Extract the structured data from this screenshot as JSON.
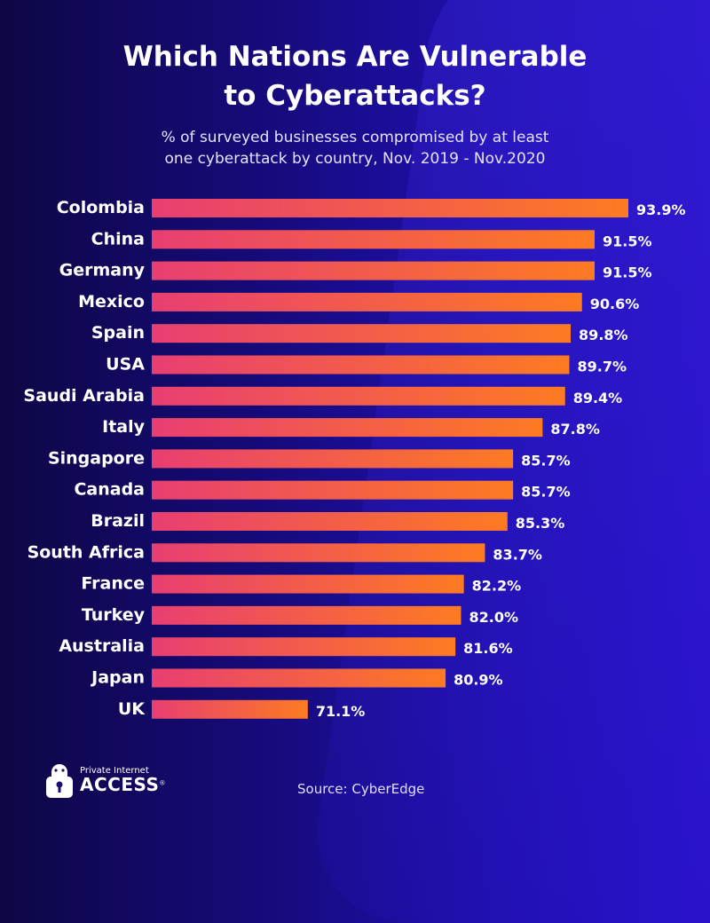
{
  "title_line1": "Which Nations Are Vulnerable",
  "title_line2": "to Cyberattacks?",
  "subtitle_line1": "% of surveyed businesses compromised by at least",
  "subtitle_line2": "one cyberattack by country, Nov. 2019 - Nov.2020",
  "source": "Source:  CyberEdge",
  "logo": {
    "line1": "Private Internet",
    "line2": "ACCESS",
    "mark": "®"
  },
  "colors": {
    "bar_start": "#e83e72",
    "bar_end": "#fd7b22"
  },
  "chart_data": {
    "type": "bar",
    "orientation": "horizontal",
    "title": "Which Nations Are Vulnerable to Cyberattacks?",
    "xlabel": "",
    "ylabel": "",
    "xlim": [
      60,
      94
    ],
    "grid": false,
    "categories": [
      "Colombia",
      "China",
      "Germany",
      "Mexico",
      "Spain",
      "USA",
      "Saudi Arabia",
      "Italy",
      "Singapore",
      "Canada",
      "Brazil",
      "South Africa",
      "France",
      "Turkey",
      "Australia",
      "Japan",
      "UK"
    ],
    "values": [
      93.9,
      91.5,
      91.5,
      90.6,
      89.8,
      89.7,
      89.4,
      87.8,
      85.7,
      85.7,
      85.3,
      83.7,
      82.2,
      82.0,
      81.6,
      80.9,
      71.1
    ],
    "labels": [
      "93.9%",
      "91.5%",
      "91.5%",
      "90.6%",
      "89.8%",
      "89.7%",
      "89.4%",
      "87.8%",
      "85.7%",
      "85.7%",
      "85.3%",
      "83.7%",
      "82.2%",
      "82.0%",
      "81.6%",
      "80.9%",
      "71.1%"
    ]
  }
}
